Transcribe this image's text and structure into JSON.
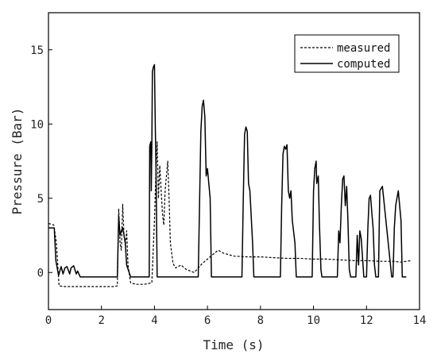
{
  "chart_data": {
    "type": "line",
    "title": "",
    "xlabel": "Time (s)",
    "ylabel": "Pressure (Bar)",
    "xlim": [
      0,
      14
    ],
    "ylim": [
      -2.5,
      17.5
    ],
    "xticks": [
      0,
      2,
      4,
      6,
      8,
      10,
      12,
      14
    ],
    "yticks": [
      0,
      5,
      10,
      15
    ],
    "grid": false,
    "legend_position": "top-right",
    "series": [
      {
        "name": "measured",
        "style": "dashed",
        "color": "#000000",
        "x": [
          0,
          0.2,
          0.3,
          0.4,
          0.6,
          1.0,
          1.5,
          2.0,
          2.5,
          2.6,
          2.65,
          2.7,
          2.75,
          2.8,
          2.85,
          2.9,
          2.95,
          3.0,
          3.1,
          3.3,
          3.6,
          3.9,
          4.0,
          4.05,
          4.1,
          4.15,
          4.2,
          4.3,
          4.35,
          4.4,
          4.5,
          4.55,
          4.6,
          4.7,
          4.8,
          5.0,
          5.2,
          5.5,
          5.8,
          6.0,
          6.2,
          6.4,
          6.6,
          6.8,
          7.0,
          7.5,
          8.0,
          8.5,
          9.0,
          9.5,
          10.0,
          10.5,
          11.0,
          11.5,
          12.0,
          12.5,
          13.0,
          13.3,
          13.5,
          13.7
        ],
        "y": [
          3.3,
          3.2,
          2.0,
          -0.9,
          -0.95,
          -0.95,
          -0.95,
          -0.95,
          -0.95,
          -0.9,
          4.3,
          2.0,
          1.5,
          4.6,
          2.5,
          1.8,
          2.8,
          0.5,
          -0.7,
          -0.8,
          -0.8,
          -0.7,
          3.5,
          6.5,
          8.8,
          5.0,
          7.2,
          4.0,
          3.2,
          5.5,
          7.5,
          5.0,
          2.0,
          0.6,
          0.3,
          0.5,
          0.2,
          0.0,
          0.6,
          0.9,
          1.2,
          1.5,
          1.3,
          1.2,
          1.1,
          1.05,
          1.05,
          1.0,
          0.95,
          0.95,
          0.9,
          0.9,
          0.85,
          0.8,
          0.8,
          0.75,
          0.75,
          0.7,
          0.75,
          0.8
        ]
      },
      {
        "name": "computed",
        "style": "solid",
        "color": "#000000",
        "x": [
          0,
          0.22,
          0.28,
          0.38,
          0.48,
          0.55,
          0.62,
          0.7,
          0.8,
          0.85,
          0.95,
          1.05,
          1.1,
          1.2,
          2.0,
          2.6,
          2.65,
          2.7,
          2.75,
          2.8,
          2.85,
          2.9,
          2.95,
          3.1,
          3.8,
          3.82,
          3.86,
          3.88,
          3.9,
          3.92,
          3.95,
          4.0,
          4.03,
          4.06,
          4.1,
          4.13,
          4.2,
          5.0,
          5.65,
          5.7,
          5.75,
          5.8,
          5.85,
          5.9,
          5.95,
          6.0,
          6.1,
          6.15,
          7.0,
          7.3,
          7.35,
          7.4,
          7.45,
          7.5,
          7.55,
          7.6,
          7.7,
          7.75,
          8.5,
          8.75,
          8.8,
          8.85,
          8.9,
          8.95,
          9.0,
          9.05,
          9.1,
          9.15,
          9.2,
          9.3,
          9.35,
          9.95,
          10.0,
          10.05,
          10.1,
          10.12,
          10.18,
          10.22,
          10.28,
          10.32,
          10.4,
          10.9,
          10.95,
          11.0,
          11.05,
          11.1,
          11.15,
          11.2,
          11.25,
          11.3,
          11.35,
          11.4,
          11.6,
          11.65,
          11.7,
          11.75,
          11.8,
          11.9,
          12.0,
          12.05,
          12.1,
          12.15,
          12.2,
          12.25,
          12.3,
          12.35,
          12.45,
          12.5,
          12.6,
          12.95,
          13.0,
          13.05,
          13.1,
          13.15,
          13.2,
          13.25,
          13.3,
          13.35,
          13.5
        ],
        "y": [
          3.0,
          3.0,
          0.8,
          -0.2,
          0.4,
          -0.1,
          0.3,
          0.4,
          -0.1,
          0.3,
          0.45,
          -0.1,
          0.1,
          -0.3,
          -0.3,
          -0.3,
          3.8,
          2.5,
          2.8,
          3.0,
          2.5,
          2.0,
          0.5,
          -0.3,
          -0.3,
          8.5,
          8.8,
          5.5,
          8.5,
          13.5,
          13.8,
          14.0,
          10.0,
          6.8,
          -0.3,
          -0.3,
          -0.3,
          -0.3,
          -0.3,
          4.5,
          9.5,
          11.2,
          11.6,
          10.5,
          6.5,
          7.0,
          5.0,
          -0.3,
          -0.3,
          -0.3,
          5.0,
          9.3,
          9.8,
          9.5,
          6.0,
          5.5,
          2.0,
          -0.3,
          -0.3,
          -0.3,
          4.5,
          8.0,
          8.5,
          8.3,
          8.6,
          5.5,
          5.0,
          5.5,
          3.5,
          2.0,
          -0.3,
          -0.3,
          5.5,
          7.0,
          7.5,
          6.0,
          6.5,
          3.5,
          0.2,
          -0.3,
          -0.3,
          -0.3,
          2.8,
          2.0,
          4.5,
          6.3,
          6.5,
          4.5,
          5.8,
          3.5,
          0.2,
          -0.3,
          -0.3,
          2.5,
          0.5,
          2.8,
          2.3,
          -0.3,
          -0.3,
          3.0,
          5.0,
          5.2,
          4.0,
          3.0,
          0.5,
          -0.3,
          -0.3,
          5.5,
          5.8,
          -0.3,
          -0.3,
          3.0,
          4.5,
          5.0,
          5.5,
          4.5,
          3.5,
          -0.3,
          -0.3
        ]
      }
    ]
  }
}
